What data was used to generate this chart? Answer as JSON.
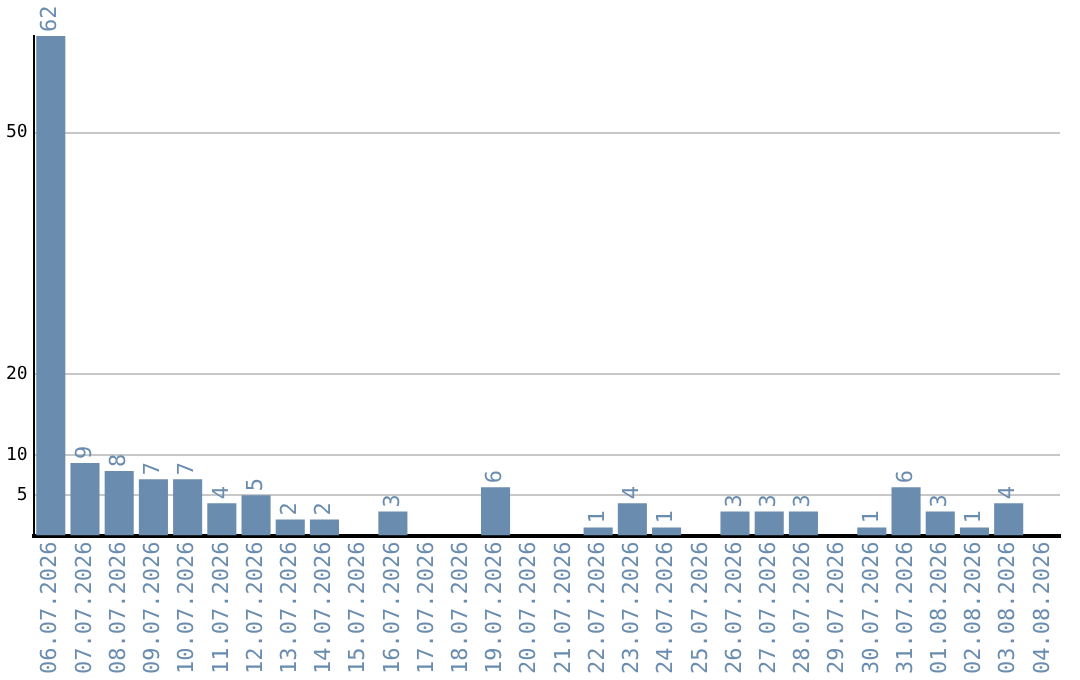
{
  "chart_data": {
    "type": "bar",
    "categories": [
      "06.07.2026",
      "07.07.2026",
      "08.07.2026",
      "09.07.2026",
      "10.07.2026",
      "11.07.2026",
      "12.07.2026",
      "13.07.2026",
      "14.07.2026",
      "15.07.2026",
      "16.07.2026",
      "17.07.2026",
      "18.07.2026",
      "19.07.2026",
      "20.07.2026",
      "21.07.2026",
      "22.07.2026",
      "23.07.2026",
      "24.07.2026",
      "25.07.2026",
      "26.07.2026",
      "27.07.2026",
      "28.07.2026",
      "29.07.2026",
      "30.07.2026",
      "31.07.2026",
      "01.08.2026",
      "02.08.2026",
      "03.08.2026",
      "04.08.2026"
    ],
    "values": [
      62,
      9,
      8,
      7,
      7,
      4,
      5,
      2,
      2,
      null,
      3,
      null,
      null,
      6,
      null,
      null,
      1,
      4,
      1,
      null,
      3,
      3,
      3,
      null,
      1,
      6,
      3,
      1,
      4,
      null
    ],
    "color": "#6a8caf",
    "ylim": [
      0,
      62
    ],
    "yticks": [
      5,
      10,
      20,
      50
    ],
    "grid": "y",
    "data_labels": true,
    "legend": false
  }
}
